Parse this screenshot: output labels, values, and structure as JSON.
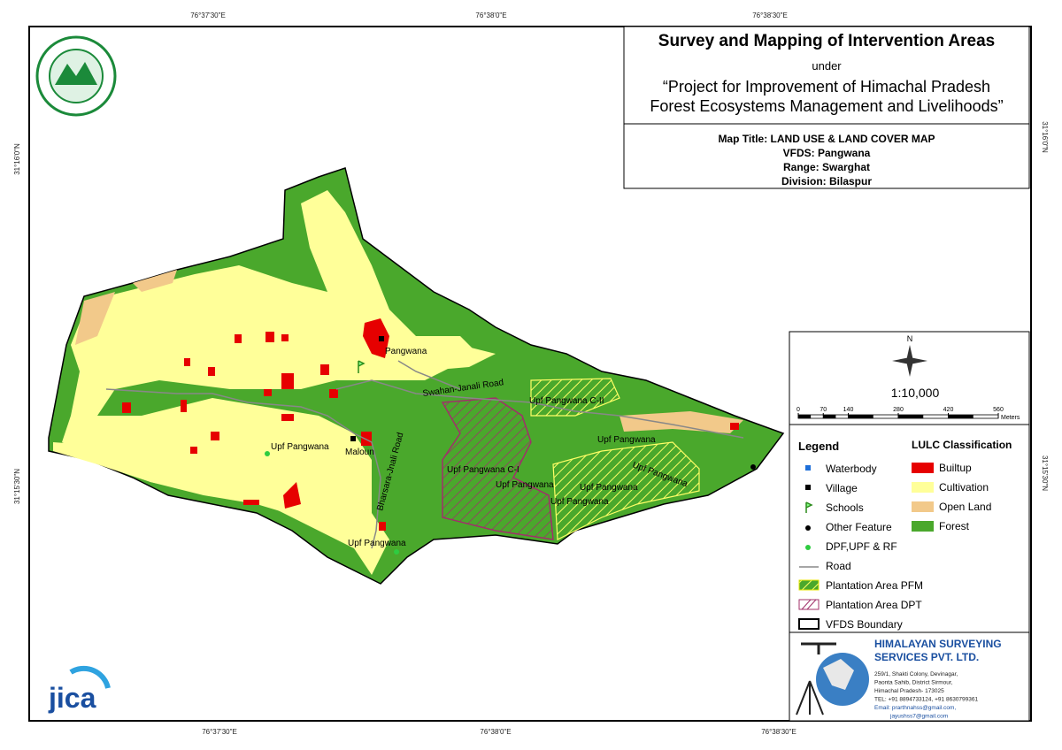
{
  "coords": {
    "top": [
      "76°37'30\"E",
      "76°38'0\"E",
      "76°38'30\"E"
    ],
    "bottom": [
      "76°37'30\"E",
      "76°38'0\"E",
      "76°38'30\"E"
    ],
    "left": [
      "31°16'0\"N",
      "31°15'30\"N"
    ],
    "right": [
      "31°16'0\"N",
      "31°15'30\"N"
    ]
  },
  "header": {
    "title": "Survey and Mapping of Intervention Areas",
    "under": "under",
    "project": [
      "“Project for Improvement of Himachal Pradesh",
      "Forest Ecosystems Management and Livelihoods”"
    ]
  },
  "info": [
    "Map Title: LAND USE & LAND COVER MAP",
    "VFDS: Pangwana",
    "Range: Swarghat",
    "Division: Bilaspur"
  ],
  "scale": {
    "north": "N",
    "ratio": "1:10,000",
    "ticks": [
      0,
      70,
      140,
      280,
      420,
      560
    ],
    "unit": "Meters"
  },
  "legend": {
    "title": "Legend",
    "items": [
      "Waterbody",
      "Village",
      "Schools",
      "Other Feature",
      "DPF,UPF & RF",
      "Road",
      "Plantation Area PFM",
      "Plantation Area DPT",
      "VFDS Boundary"
    ]
  },
  "lulc": {
    "title": "LULC Classification",
    "items": [
      "Builtup",
      "Cultivation",
      "Open Land",
      "Forest"
    ]
  },
  "company": {
    "name": [
      "HIMALAYAN SURVEYING",
      "SERVICES PVT. LTD."
    ],
    "address": [
      "259/1, Shakti Colony, Devinagar,",
      "Paonta Sahib, District Sirmour,",
      "Himachal Pradesh- 173025",
      "TEL: +91 8894733124, +91 8630799361",
      "Email: prarthnahss@gmail.com,",
      "jayushss7@gmail.com"
    ]
  },
  "logo": "jica",
  "map": {
    "labels": [
      "Pangwana",
      "Swahan-Janali Road",
      "Upf Pangwana C-II",
      "Upf Pangwana",
      "Maloun",
      "Upf Pangwana",
      "Upf Pangwana C-I",
      "Upf Pangwana",
      "Upf Pangwana",
      "Upf Pangwana",
      "Upf Pangwana",
      "Bharsara-Jnali Road",
      "Upf Pangwana"
    ]
  }
}
